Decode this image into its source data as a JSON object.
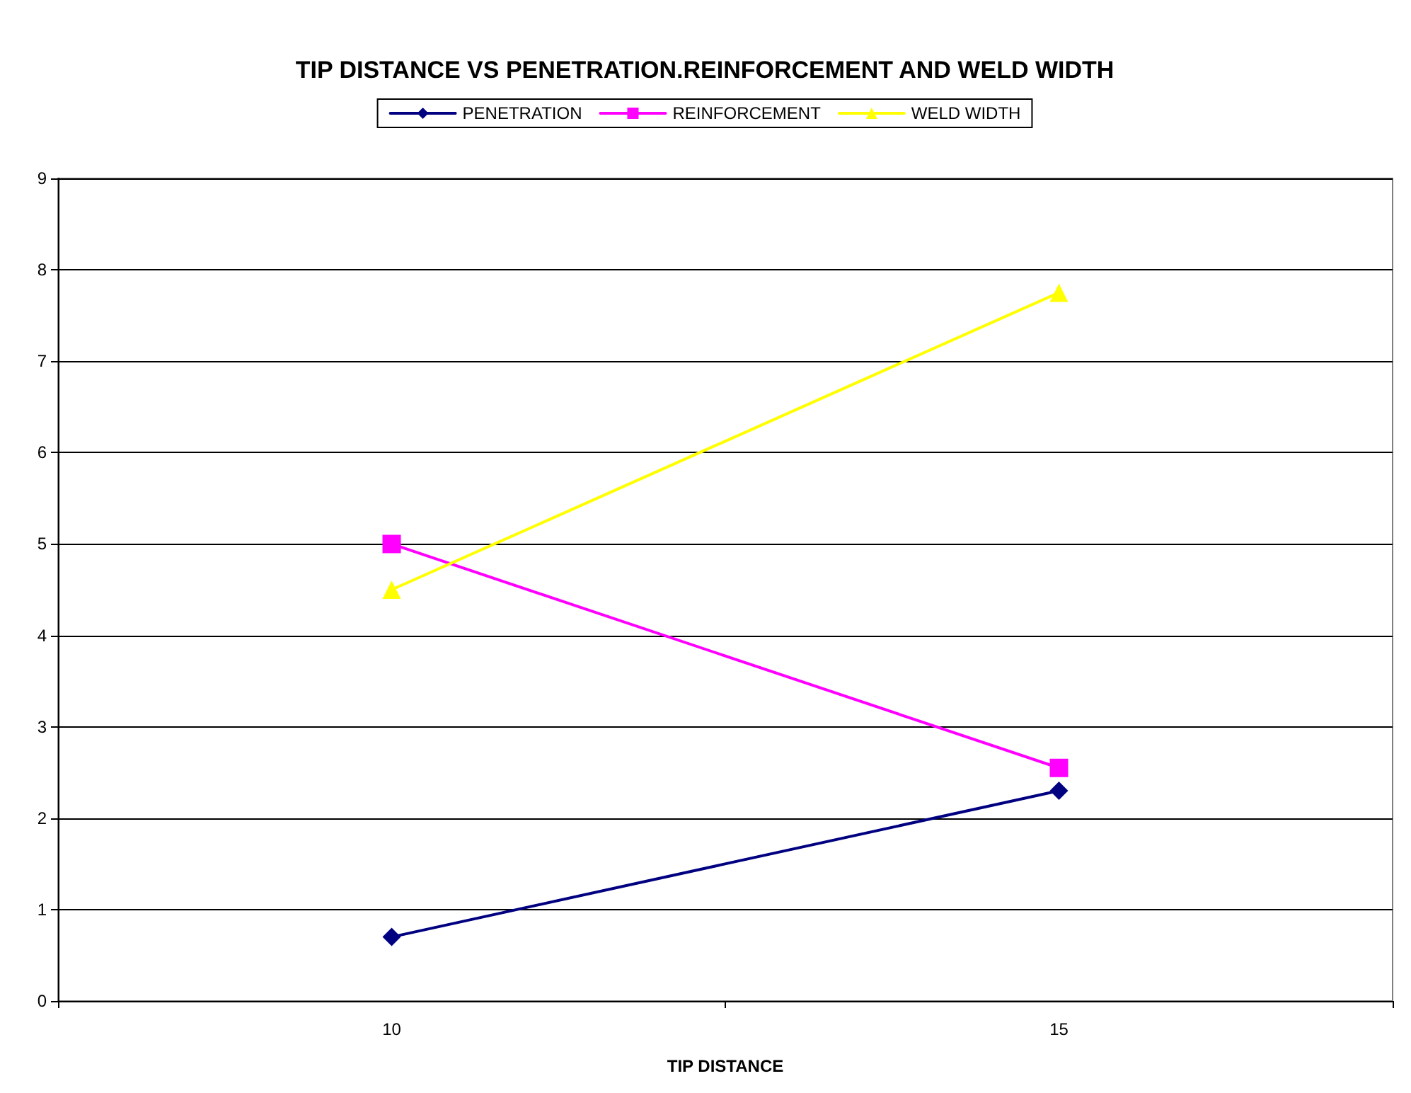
{
  "chart_data": {
    "type": "line",
    "title": "TIP DISTANCE VS PENETRATION.REINFORCEMENT AND WELD WIDTH",
    "xlabel": "TIP DISTANCE",
    "categories": [
      "10",
      "15"
    ],
    "series": [
      {
        "name": "PENETRATION",
        "color": "#000080",
        "marker": "diamond",
        "values": [
          0.7,
          2.3
        ]
      },
      {
        "name": "REINFORCEMENT",
        "color": "#ff00ff",
        "marker": "square",
        "values": [
          5.0,
          2.55
        ]
      },
      {
        "name": "WELD WIDTH",
        "color": "#ffff00",
        "marker": "triangle",
        "values": [
          4.5,
          7.75
        ]
      }
    ],
    "ylim": [
      0,
      9
    ],
    "yticks": [
      0,
      1,
      2,
      3,
      4,
      5,
      6,
      7,
      8,
      9
    ],
    "grid": "y",
    "legend": "top",
    "line_style": "solid"
  }
}
